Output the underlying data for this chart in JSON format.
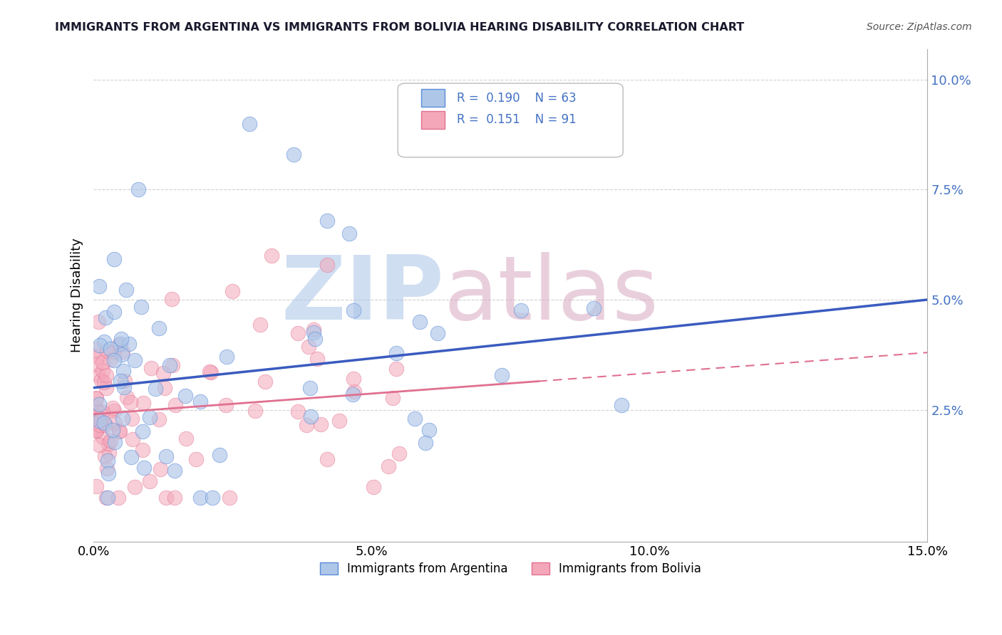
{
  "title": "IMMIGRANTS FROM ARGENTINA VS IMMIGRANTS FROM BOLIVIA HEARING DISABILITY CORRELATION CHART",
  "source": "Source: ZipAtlas.com",
  "ylabel": "Hearing Disability",
  "xlim": [
    0.0,
    0.15
  ],
  "ylim": [
    -0.005,
    0.107
  ],
  "yticks": [
    0.025,
    0.05,
    0.075,
    0.1
  ],
  "ytick_labels": [
    "2.5%",
    "5.0%",
    "7.5%",
    "10.0%"
  ],
  "xticks": [
    0.0,
    0.05,
    0.1,
    0.15
  ],
  "xtick_labels": [
    "0.0%",
    "5.0%",
    "10.0%",
    "15.0%"
  ],
  "argentina_color": "#aec6e8",
  "bolivia_color": "#f4a7b9",
  "argentina_edge_color": "#5b8dd9",
  "bolivia_edge_color": "#e07090",
  "argentina_line_color": "#3a5bbf",
  "bolivia_line_color": "#e07090",
  "legend_text_color": "#4472c4",
  "watermark": "ZIPatlas",
  "watermark_color_zip": "#b0c8e8",
  "watermark_color_atlas": "#d8a8c0",
  "background_color": "#ffffff",
  "grid_color": "#cccccc",
  "title_color": "#1a1a2e",
  "source_color": "#555555",
  "argentina_R": 0.19,
  "argentina_N": 63,
  "bolivia_R": 0.151,
  "bolivia_N": 91,
  "arg_trend_x0": 0.0,
  "arg_trend_y0": 0.03,
  "arg_trend_x1": 0.15,
  "arg_trend_y1": 0.05,
  "bol_trend_x0": 0.0,
  "bol_trend_y0": 0.024,
  "bol_trend_x1": 0.15,
  "bol_trend_y1": 0.038
}
